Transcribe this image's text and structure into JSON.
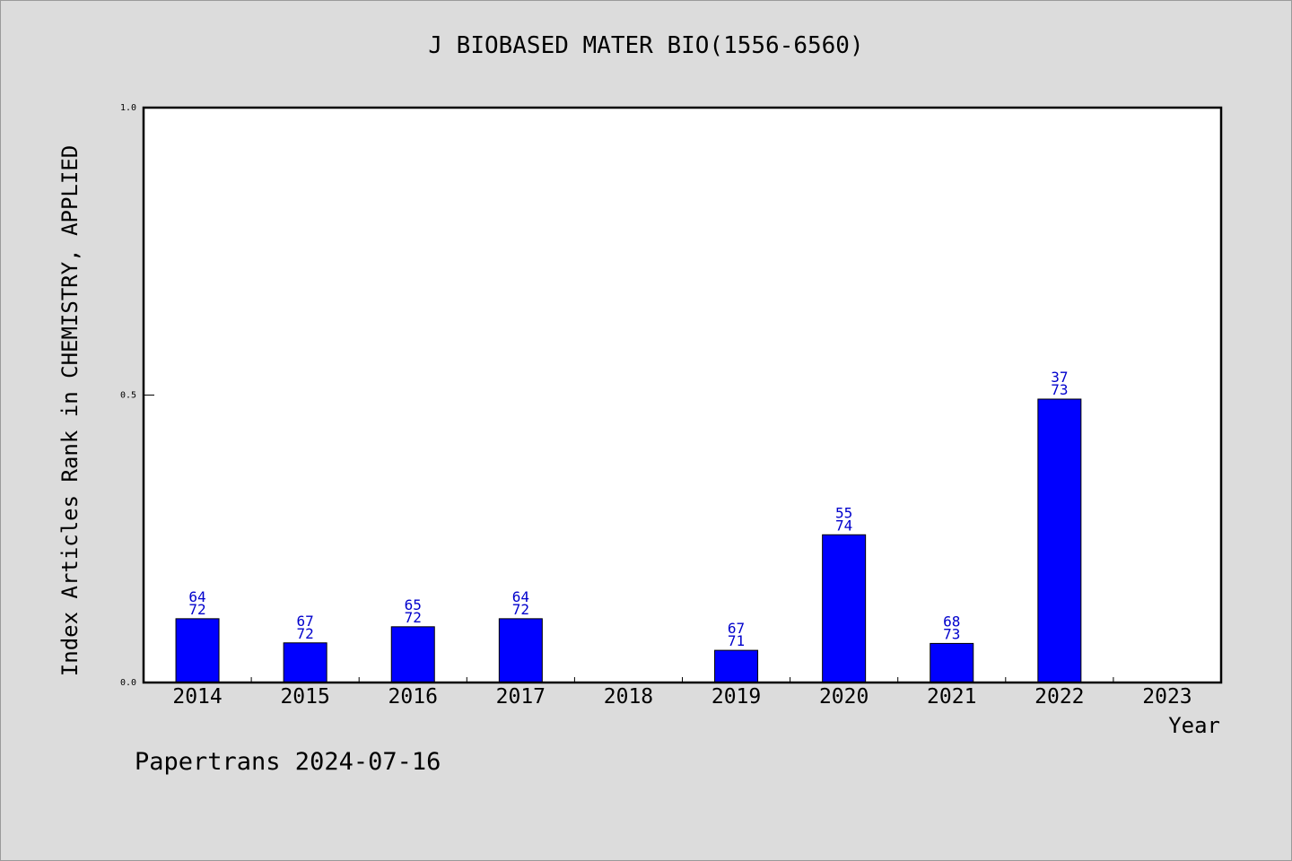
{
  "footer": {
    "note": "Papertrans 2024-07-16"
  },
  "chart_data": {
    "type": "bar",
    "title": "J BIOBASED MATER BIO(1556-6560)",
    "xlabel": "Year",
    "ylabel": "Index Articles Rank in CHEMISTRY, APPLIED",
    "ylim": [
      0.0,
      1.0
    ],
    "yticks": [
      "0.0",
      "0.5",
      "1.0"
    ],
    "grid": false,
    "bar_color": "#0000ff",
    "label_color": "#0000cc",
    "categories": [
      "2014",
      "2015",
      "2016",
      "2017",
      "2018",
      "2019",
      "2020",
      "2021",
      "2022",
      "2023"
    ],
    "values": [
      0.111,
      0.069,
      0.097,
      0.111,
      null,
      0.056,
      0.257,
      0.068,
      0.493,
      null
    ],
    "ranks": [
      "64",
      "67",
      "65",
      "64",
      "",
      "67",
      "55",
      "68",
      "37",
      ""
    ],
    "totals": [
      "72",
      "72",
      "72",
      "72",
      "",
      "71",
      "74",
      "73",
      "73",
      ""
    ]
  }
}
